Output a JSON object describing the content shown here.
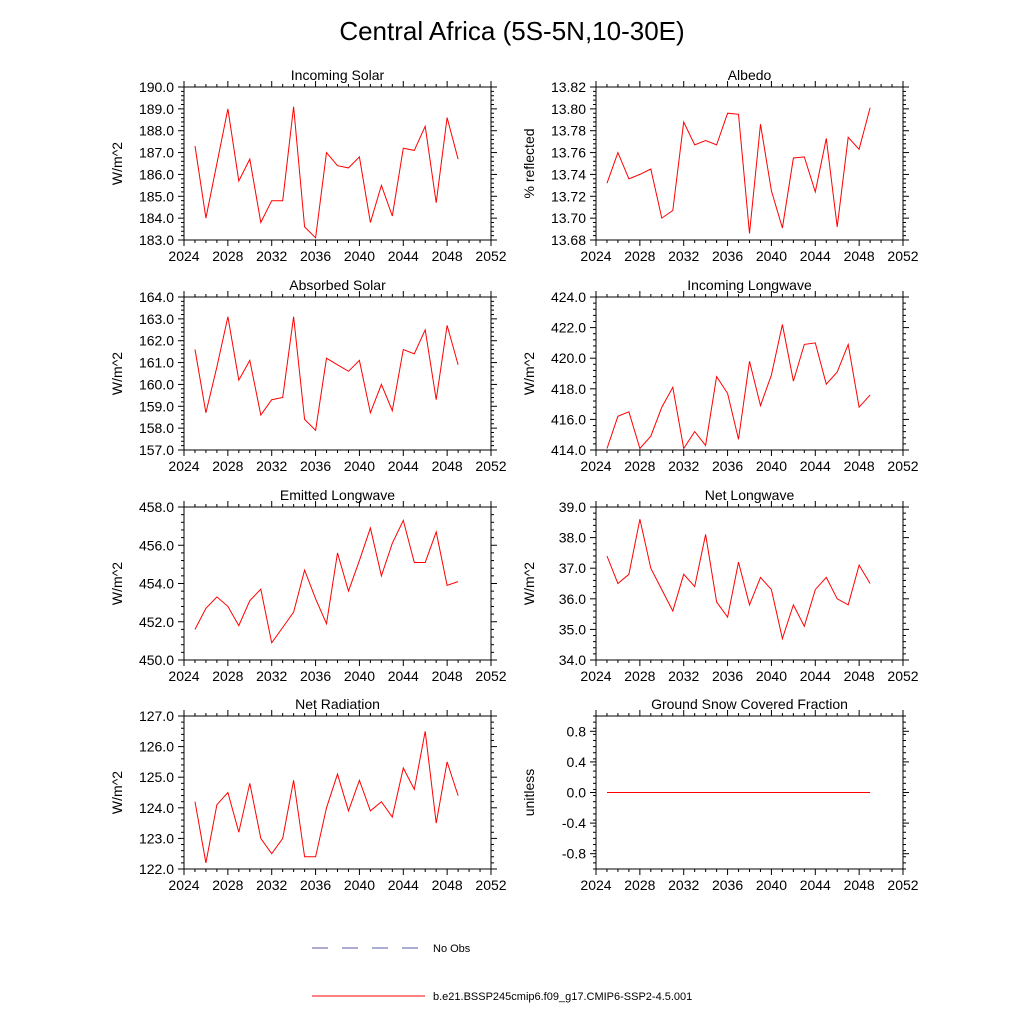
{
  "title": "Central Africa (5S-5N,10-30E)",
  "x_ticks": [
    2024,
    2028,
    2032,
    2036,
    2040,
    2044,
    2048,
    2052
  ],
  "x_range": [
    2024,
    2052
  ],
  "x_years": [
    2025,
    2026,
    2027,
    2028,
    2029,
    2030,
    2031,
    2032,
    2033,
    2034,
    2035,
    2036,
    2037,
    2038,
    2039,
    2040,
    2041,
    2042,
    2043,
    2044,
    2045,
    2046,
    2047,
    2048,
    2049
  ],
  "colors": {
    "model": "#ff0000",
    "obs": "#5a5aa8",
    "axis": "#000000"
  },
  "chart_data": [
    {
      "type": "line",
      "title": "Incoming Solar",
      "ylabel": "W/m^2",
      "ylim": [
        183.0,
        190.0
      ],
      "yticks": [
        183.0,
        184.0,
        185.0,
        186.0,
        187.0,
        188.0,
        189.0,
        190.0
      ],
      "ytick_labels": [
        "183.0",
        "184.0",
        "185.0",
        "186.0",
        "187.0",
        "188.0",
        "189.0",
        "190.0"
      ],
      "values": [
        187.3,
        184.0,
        186.5,
        189.0,
        185.7,
        186.7,
        183.8,
        184.8,
        184.8,
        189.1,
        183.6,
        183.1,
        187.0,
        186.4,
        186.3,
        186.8,
        183.8,
        185.5,
        184.1,
        187.2,
        187.1,
        188.2,
        184.7,
        188.6,
        186.7
      ]
    },
    {
      "type": "line",
      "title": "Albedo",
      "ylabel": "% reflected",
      "ylim": [
        13.68,
        13.82
      ],
      "yticks": [
        13.68,
        13.7,
        13.72,
        13.74,
        13.76,
        13.78,
        13.8,
        13.82
      ],
      "ytick_labels": [
        "13.68",
        "13.70",
        "13.72",
        "13.74",
        "13.76",
        "13.78",
        "13.80",
        "13.82"
      ],
      "values": [
        13.732,
        13.76,
        13.736,
        13.74,
        13.745,
        13.7,
        13.707,
        13.788,
        13.767,
        13.771,
        13.767,
        13.796,
        13.795,
        13.686,
        13.786,
        13.725,
        13.691,
        13.755,
        13.756,
        13.724,
        13.773,
        13.692,
        13.774,
        13.763,
        13.801
      ]
    },
    {
      "type": "line",
      "title": "Absorbed Solar",
      "ylabel": "W/m^2",
      "ylim": [
        157.0,
        164.0
      ],
      "yticks": [
        157.0,
        158.0,
        159.0,
        160.0,
        161.0,
        162.0,
        163.0,
        164.0
      ],
      "ytick_labels": [
        "157.0",
        "158.0",
        "159.0",
        "160.0",
        "161.0",
        "162.0",
        "163.0",
        "164.0"
      ],
      "values": [
        161.6,
        158.7,
        160.8,
        163.1,
        160.2,
        161.1,
        158.6,
        159.3,
        159.4,
        163.1,
        158.4,
        157.9,
        161.2,
        160.9,
        160.6,
        161.1,
        158.7,
        160.0,
        158.8,
        161.6,
        161.4,
        162.5,
        159.3,
        162.7,
        160.9
      ]
    },
    {
      "type": "line",
      "title": "Incoming Longwave",
      "ylabel": "W/m^2",
      "ylim": [
        414.0,
        424.0
      ],
      "yticks": [
        414.0,
        416.0,
        418.0,
        420.0,
        422.0,
        424.0
      ],
      "ytick_labels": [
        "414.0",
        "416.0",
        "418.0",
        "420.0",
        "422.0",
        "424.0"
      ],
      "values": [
        414.1,
        416.2,
        416.5,
        414.1,
        414.9,
        416.8,
        418.1,
        414.1,
        415.2,
        414.3,
        418.8,
        417.7,
        414.7,
        419.8,
        416.9,
        418.9,
        422.2,
        418.5,
        420.9,
        421.0,
        418.3,
        419.1,
        420.9,
        416.8,
        417.6
      ]
    },
    {
      "type": "line",
      "title": "Emitted Longwave",
      "ylabel": "W/m^2",
      "ylim": [
        450.0,
        458.0
      ],
      "yticks": [
        450.0,
        452.0,
        454.0,
        456.0,
        458.0
      ],
      "ytick_labels": [
        "450.0",
        "452.0",
        "454.0",
        "456.0",
        "458.0"
      ],
      "values": [
        451.6,
        452.7,
        453.3,
        452.8,
        451.8,
        453.1,
        453.7,
        450.9,
        451.7,
        452.5,
        454.7,
        453.2,
        451.9,
        455.6,
        453.6,
        455.2,
        456.9,
        454.4,
        456.1,
        457.3,
        455.1,
        455.1,
        456.7,
        453.9,
        454.1
      ]
    },
    {
      "type": "line",
      "title": "Net Longwave",
      "ylabel": "W/m^2",
      "ylim": [
        34.0,
        39.0
      ],
      "yticks": [
        34.0,
        35.0,
        36.0,
        37.0,
        38.0,
        39.0
      ],
      "ytick_labels": [
        "34.0",
        "35.0",
        "36.0",
        "37.0",
        "38.0",
        "39.0"
      ],
      "values": [
        37.4,
        36.5,
        36.8,
        38.6,
        37.0,
        36.3,
        35.6,
        36.8,
        36.4,
        38.1,
        35.9,
        35.4,
        37.2,
        35.8,
        36.7,
        36.3,
        34.7,
        35.8,
        35.1,
        36.3,
        36.7,
        36.0,
        35.8,
        37.1,
        36.5
      ]
    },
    {
      "type": "line",
      "title": "Net Radiation",
      "ylabel": "W/m^2",
      "ylim": [
        122.0,
        127.0
      ],
      "yticks": [
        122.0,
        123.0,
        124.0,
        125.0,
        126.0,
        127.0
      ],
      "ytick_labels": [
        "122.0",
        "123.0",
        "124.0",
        "125.0",
        "126.0",
        "127.0"
      ],
      "values": [
        124.2,
        122.2,
        124.1,
        124.5,
        123.2,
        124.8,
        123.0,
        122.5,
        123.0,
        124.9,
        122.4,
        122.4,
        124.0,
        125.1,
        123.9,
        124.9,
        123.9,
        124.2,
        123.7,
        125.3,
        124.6,
        126.5,
        123.5,
        125.5,
        124.4
      ]
    },
    {
      "type": "line",
      "title": "Ground Snow Covered Fraction",
      "ylabel": "unitless",
      "ylim": [
        -1.0,
        1.0
      ],
      "yticks": [
        -0.8,
        -0.4,
        0.0,
        0.4,
        0.8
      ],
      "ytick_labels": [
        "-0.8",
        "-0.4",
        "0.0",
        "0.4",
        "0.8"
      ],
      "values": [
        0,
        0,
        0,
        0,
        0,
        0,
        0,
        0,
        0,
        0,
        0,
        0,
        0,
        0,
        0,
        0,
        0,
        0,
        0,
        0,
        0,
        0,
        0,
        0,
        0
      ]
    }
  ],
  "legend": {
    "obs_label": "No Obs",
    "model_label": "b.e21.BSSP245cmip6.f09_g17.CMIP6-SSP2-4.5.001"
  }
}
